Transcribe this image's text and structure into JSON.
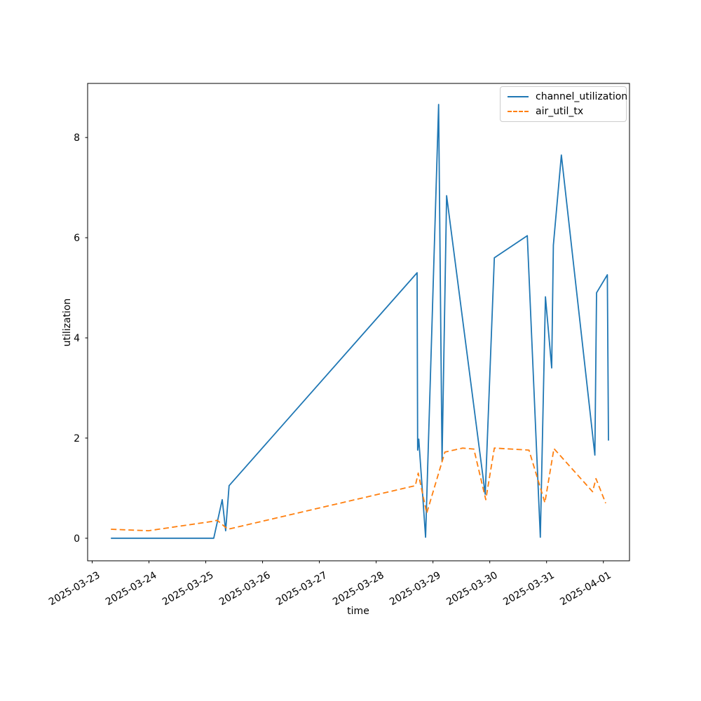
{
  "figure": {
    "background": "#ffffff"
  },
  "chart_data": {
    "type": "line",
    "title": "",
    "xlabel": "time",
    "ylabel": "utilization",
    "x_unit": "fractional days after 2025-03-23",
    "x_tick_positions": [
      0,
      1,
      2,
      3,
      4,
      5,
      6,
      7,
      8,
      9
    ],
    "x_tick_labels": [
      "2025-03-23",
      "2025-03-24",
      "2025-03-25",
      "2025-03-26",
      "2025-03-27",
      "2025-03-28",
      "2025-03-29",
      "2025-03-30",
      "2025-03-31",
      "2025-04-01"
    ],
    "x_tick_rotation_deg": 30,
    "y_ticks": [
      0,
      2,
      4,
      6,
      8
    ],
    "xlim": [
      -0.08,
      9.46
    ],
    "ylim": [
      -0.45,
      9.08
    ],
    "grid": false,
    "legend": {
      "position": "upper right",
      "entries": [
        "channel_utilization",
        "air_util_tx"
      ]
    },
    "series": [
      {
        "name": "channel_utilization",
        "color": "#1f77b4",
        "line_style": "solid",
        "points": [
          [
            0.33,
            0.0
          ],
          [
            2.14,
            0.0
          ],
          [
            2.29,
            0.77
          ],
          [
            2.35,
            0.15
          ],
          [
            2.41,
            1.05
          ],
          [
            5.72,
            5.3
          ],
          [
            5.73,
            1.76
          ],
          [
            5.75,
            1.98
          ],
          [
            5.87,
            0.02
          ],
          [
            6.1,
            8.66
          ],
          [
            6.16,
            1.54
          ],
          [
            6.24,
            6.84
          ],
          [
            6.92,
            0.88
          ],
          [
            7.08,
            5.6
          ],
          [
            7.66,
            6.04
          ],
          [
            7.89,
            0.02
          ],
          [
            7.98,
            4.82
          ],
          [
            8.09,
            3.4
          ],
          [
            8.12,
            5.85
          ],
          [
            8.26,
            7.65
          ],
          [
            8.85,
            1.66
          ],
          [
            8.88,
            4.9
          ],
          [
            9.07,
            5.26
          ],
          [
            9.09,
            1.95
          ]
        ]
      },
      {
        "name": "air_util_tx",
        "color": "#ff7f0e",
        "line_style": "dashed",
        "points": [
          [
            0.33,
            0.18
          ],
          [
            0.99,
            0.15
          ],
          [
            2.14,
            0.34
          ],
          [
            2.2,
            0.36
          ],
          [
            2.39,
            0.18
          ],
          [
            5.69,
            1.05
          ],
          [
            5.74,
            1.3
          ],
          [
            5.89,
            0.5
          ],
          [
            6.21,
            1.72
          ],
          [
            6.52,
            1.8
          ],
          [
            6.72,
            1.78
          ],
          [
            6.93,
            0.77
          ],
          [
            7.08,
            1.8
          ],
          [
            7.69,
            1.76
          ],
          [
            7.97,
            0.71
          ],
          [
            8.13,
            1.79
          ],
          [
            8.81,
            0.93
          ],
          [
            8.87,
            1.19
          ],
          [
            9.04,
            0.7
          ]
        ]
      }
    ]
  }
}
